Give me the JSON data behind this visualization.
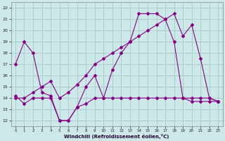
{
  "background_color": "#cce8e8",
  "grid_color": "#aacccc",
  "line_color": "#880088",
  "xlabel": "Windchill (Refroidissement éolien,°C)",
  "xlim": [
    -0.5,
    23.5
  ],
  "ylim": [
    11.5,
    22.5
  ],
  "yticks": [
    12,
    13,
    14,
    15,
    16,
    17,
    18,
    19,
    20,
    21,
    22
  ],
  "xticks": [
    0,
    1,
    2,
    3,
    4,
    5,
    6,
    7,
    8,
    9,
    10,
    11,
    12,
    13,
    14,
    15,
    16,
    17,
    18,
    19,
    20,
    21,
    22,
    23
  ],
  "line1_x": [
    0,
    1,
    2,
    3,
    4,
    5,
    6,
    7,
    8,
    9,
    10,
    11,
    12,
    13,
    14,
    15,
    16,
    17,
    18,
    19,
    20,
    21,
    22,
    23
  ],
  "line1_y": [
    17.0,
    19.0,
    18.0,
    14.5,
    14.2,
    12.0,
    12.0,
    13.2,
    15.0,
    16.0,
    14.0,
    16.5,
    18.0,
    19.0,
    21.5,
    21.5,
    21.5,
    21.0,
    21.5,
    19.5,
    20.5,
    17.5,
    14.0,
    13.7
  ],
  "line2_x": [
    0,
    1,
    2,
    3,
    4,
    5,
    6,
    7,
    8,
    9,
    10,
    11,
    12,
    13,
    14,
    15,
    16,
    17,
    18,
    19,
    20,
    21,
    22,
    23
  ],
  "line2_y": [
    14.0,
    14.0,
    14.5,
    15.0,
    15.5,
    14.0,
    14.5,
    15.2,
    16.0,
    17.0,
    17.5,
    18.0,
    18.5,
    19.0,
    19.5,
    20.0,
    20.5,
    21.0,
    19.0,
    14.0,
    13.7,
    13.7,
    13.7,
    13.7
  ],
  "line3_x": [
    0,
    1,
    2,
    3,
    4,
    5,
    6,
    7,
    8,
    9,
    10,
    11,
    12,
    13,
    14,
    15,
    16,
    17,
    18,
    19,
    20,
    21,
    22,
    23
  ],
  "line3_y": [
    14.2,
    13.5,
    14.0,
    14.0,
    14.0,
    12.0,
    12.0,
    13.2,
    13.5,
    14.0,
    14.0,
    14.0,
    14.0,
    14.0,
    14.0,
    14.0,
    14.0,
    14.0,
    14.0,
    14.0,
    14.0,
    14.0,
    14.0,
    13.7
  ]
}
